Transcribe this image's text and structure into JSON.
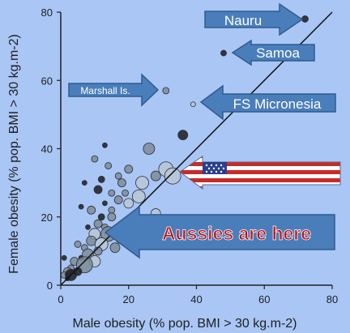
{
  "chart_data": {
    "type": "scatter",
    "title": "",
    "xlabel": "Male obesity (% pop. BMI > 30 kg.m-2)",
    "ylabel": "Female obesity (% pop. BMI > 30 kg.m-2)",
    "xlim": [
      0,
      80
    ],
    "ylim": [
      0,
      80
    ],
    "xticks": [
      0,
      20,
      40,
      60,
      80
    ],
    "yticks": [
      0,
      20,
      40,
      60,
      80
    ],
    "reference_line": "y = x",
    "annotations": [
      {
        "label": "Nauru"
      },
      {
        "label": "Samoa"
      },
      {
        "label": "Marshall Is."
      },
      {
        "label": "FS Micronesia"
      },
      {
        "label": "Aussies are here"
      }
    ],
    "points": [
      {
        "x": 72,
        "y": 78,
        "r": 4,
        "shade": "dark"
      },
      {
        "x": 48,
        "y": 68,
        "r": 3.5,
        "shade": "dark"
      },
      {
        "x": 31,
        "y": 57,
        "r": 4,
        "shade": "gray"
      },
      {
        "x": 39,
        "y": 53,
        "r": 3,
        "shade": "light"
      },
      {
        "x": 36,
        "y": 44,
        "r": 6,
        "shade": "dark"
      },
      {
        "x": 26,
        "y": 40,
        "r": 7,
        "shade": "gray"
      },
      {
        "x": 13,
        "y": 41,
        "r": 3,
        "shade": "dark"
      },
      {
        "x": 10,
        "y": 37,
        "r": 4,
        "shade": "gray"
      },
      {
        "x": 14,
        "y": 35,
        "r": 4,
        "shade": "gray"
      },
      {
        "x": 20,
        "y": 34,
        "r": 5,
        "shade": "gray"
      },
      {
        "x": 31,
        "y": 34,
        "r": 9,
        "shade": "light"
      },
      {
        "x": 28,
        "y": 32,
        "r": 6,
        "shade": "gray"
      },
      {
        "x": 33,
        "y": 32,
        "r": 10,
        "shade": "light"
      },
      {
        "x": 17,
        "y": 32,
        "r": 4,
        "shade": "gray"
      },
      {
        "x": 12,
        "y": 31,
        "r": 4,
        "shade": "dark"
      },
      {
        "x": 18,
        "y": 30,
        "r": 5,
        "shade": "gray"
      },
      {
        "x": 24,
        "y": 30,
        "r": 8,
        "shade": "light"
      },
      {
        "x": 7,
        "y": 30,
        "r": 3,
        "shade": "dark"
      },
      {
        "x": 11,
        "y": 28,
        "r": 5,
        "shade": "dark"
      },
      {
        "x": 15,
        "y": 27,
        "r": 4,
        "shade": "gray"
      },
      {
        "x": 19,
        "y": 27,
        "r": 4,
        "shade": "gray"
      },
      {
        "x": 23,
        "y": 26,
        "r": 8,
        "shade": "light"
      },
      {
        "x": 17,
        "y": 25,
        "r": 5,
        "shade": "gray"
      },
      {
        "x": 13,
        "y": 24,
        "r": 3,
        "shade": "dark"
      },
      {
        "x": 20,
        "y": 24,
        "r": 6,
        "shade": "light"
      },
      {
        "x": 6,
        "y": 23,
        "r": 3,
        "shade": "dark"
      },
      {
        "x": 9,
        "y": 22,
        "r": 5,
        "shade": "gray"
      },
      {
        "x": 15,
        "y": 22,
        "r": 4,
        "shade": "gray"
      },
      {
        "x": 28,
        "y": 21,
        "r": 6,
        "shade": "light"
      },
      {
        "x": 12,
        "y": 20,
        "r": 4,
        "shade": "dark"
      },
      {
        "x": 15,
        "y": 20,
        "r": 5,
        "shade": "gray"
      },
      {
        "x": 11,
        "y": 18,
        "r": 5,
        "shade": "gray"
      },
      {
        "x": 8,
        "y": 17,
        "r": 3,
        "shade": "dark"
      },
      {
        "x": 13,
        "y": 17,
        "r": 4,
        "shade": "gray"
      },
      {
        "x": 17,
        "y": 16,
        "r": 6,
        "shade": "dark"
      },
      {
        "x": 21,
        "y": 16,
        "r": 5,
        "shade": "gray"
      },
      {
        "x": 10,
        "y": 15,
        "r": 7,
        "shade": "light"
      },
      {
        "x": 14,
        "y": 15,
        "r": 9,
        "shade": "gray"
      },
      {
        "x": 18,
        "y": 14,
        "r": 8,
        "shade": "light"
      },
      {
        "x": 9,
        "y": 13,
        "r": 6,
        "shade": "gray"
      },
      {
        "x": 12,
        "y": 12,
        "r": 8,
        "shade": "light"
      },
      {
        "x": 5,
        "y": 12,
        "r": 4,
        "shade": "gray"
      },
      {
        "x": 7,
        "y": 11,
        "r": 4,
        "shade": "gray"
      },
      {
        "x": 16,
        "y": 11,
        "r": 6,
        "shade": "gray"
      },
      {
        "x": 11,
        "y": 10,
        "r": 5,
        "shade": "gray"
      },
      {
        "x": 8,
        "y": 9,
        "r": 7,
        "shade": "gray"
      },
      {
        "x": 6,
        "y": 8,
        "r": 3,
        "shade": "dark"
      },
      {
        "x": 1,
        "y": 8,
        "r": 3,
        "shade": "dark"
      },
      {
        "x": 10,
        "y": 7,
        "r": 7,
        "shade": "light"
      },
      {
        "x": 4,
        "y": 7,
        "r": 5,
        "shade": "gray"
      },
      {
        "x": 7,
        "y": 6,
        "r": 10,
        "shade": "gray"
      },
      {
        "x": 3,
        "y": 5,
        "r": 4,
        "shade": "gray"
      },
      {
        "x": 5,
        "y": 4,
        "r": 5,
        "shade": "dark"
      },
      {
        "x": 2,
        "y": 4,
        "r": 5,
        "shade": "gray"
      },
      {
        "x": 1,
        "y": 3,
        "r": 4,
        "shade": "gray"
      },
      {
        "x": 3,
        "y": 3,
        "r": 7,
        "shade": "dark"
      },
      {
        "x": 2,
        "y": 2,
        "r": 3,
        "shade": "dark"
      }
    ]
  },
  "colors": {
    "background": "#a9c6f5",
    "arrow_fill": "#4a7ebb",
    "arrow_stroke": "#2f5b8f",
    "aussie_text": "#c0111a",
    "label_text": "#ffffff"
  }
}
